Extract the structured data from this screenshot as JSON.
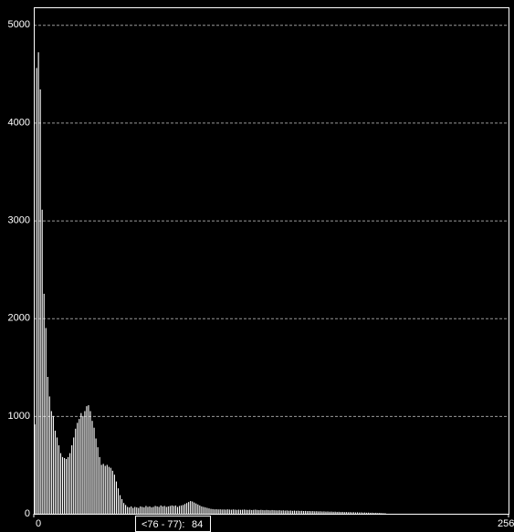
{
  "chart_data": {
    "type": "histogram",
    "color": "#ffffff",
    "grid": true,
    "bins": [
      0,
      1,
      2,
      3,
      4,
      5,
      6,
      7,
      8,
      9,
      10,
      11,
      12,
      13,
      14,
      15,
      16,
      17,
      18,
      19,
      20,
      21,
      22,
      23,
      24,
      25,
      26,
      27,
      28,
      29,
      30,
      31,
      32,
      33,
      34,
      35,
      36,
      37,
      38,
      39,
      40,
      41,
      42,
      43,
      44,
      45,
      46,
      47,
      48,
      49,
      50,
      51,
      52,
      53,
      54,
      55,
      56,
      57,
      58,
      59,
      60,
      61,
      62,
      63,
      64,
      65,
      66,
      67,
      68,
      69,
      70,
      71,
      72,
      73,
      74,
      75,
      76,
      77,
      78,
      79,
      80,
      81,
      82,
      83,
      84,
      85,
      86,
      87,
      88,
      89,
      90,
      91,
      92,
      93,
      94,
      95,
      96,
      97,
      98,
      99,
      100,
      101,
      102,
      103,
      104,
      105,
      106,
      107,
      108,
      109,
      110,
      111,
      112,
      113,
      114,
      115,
      116,
      117,
      118,
      119,
      120,
      121,
      122,
      123,
      124,
      125,
      126,
      127,
      128,
      129,
      130,
      131,
      132,
      133,
      134,
      135,
      136,
      137,
      138,
      139,
      140,
      141,
      142,
      143,
      144,
      145,
      146,
      147,
      148,
      149,
      150,
      151,
      152,
      153,
      154,
      155,
      156,
      157,
      158,
      159,
      160,
      161,
      162,
      163,
      164,
      165,
      166,
      167,
      168,
      169,
      170,
      171,
      172,
      173,
      174,
      175,
      176,
      177,
      178,
      179,
      180,
      181,
      182,
      183,
      184,
      185,
      186,
      187,
      188,
      189,
      190,
      191,
      192,
      193,
      194,
      195,
      196,
      197,
      198,
      199,
      200,
      201,
      202,
      203,
      204,
      205,
      206,
      207,
      208,
      209,
      210,
      211,
      212,
      213,
      214,
      215,
      216,
      217,
      218,
      219,
      220,
      221,
      222,
      223,
      224,
      225,
      226,
      227,
      228,
      229,
      230,
      231,
      232,
      233,
      234,
      235,
      236,
      237,
      238,
      239,
      240,
      241,
      242,
      243,
      244,
      245,
      246,
      247,
      248,
      249,
      250,
      251,
      252,
      253,
      254,
      255,
      256
    ],
    "values": [
      914,
      4560,
      4720,
      4340,
      3110,
      2250,
      1900,
      1400,
      1200,
      1050,
      1000,
      850,
      780,
      700,
      620,
      580,
      570,
      560,
      580,
      620,
      700,
      780,
      870,
      930,
      970,
      1030,
      1000,
      1050,
      1100,
      1110,
      1050,
      950,
      880,
      770,
      680,
      580,
      500,
      510,
      490,
      500,
      480,
      470,
      440,
      400,
      330,
      260,
      190,
      150,
      110,
      90,
      70,
      65,
      75,
      60,
      70,
      65,
      60,
      75,
      70,
      65,
      80,
      70,
      75,
      65,
      70,
      80,
      75,
      70,
      85,
      75,
      80,
      70,
      75,
      80,
      85,
      80,
      84,
      70,
      80,
      85,
      90,
      100,
      110,
      120,
      130,
      125,
      115,
      105,
      95,
      85,
      75,
      70,
      65,
      60,
      55,
      50,
      48,
      45,
      46,
      44,
      45,
      43,
      44,
      42,
      45,
      43,
      41,
      44,
      42,
      40,
      42,
      40,
      41,
      43,
      40,
      39,
      41,
      38,
      40,
      42,
      39,
      37,
      40,
      38,
      36,
      39,
      37,
      35,
      38,
      36,
      35,
      34,
      36,
      33,
      35,
      32,
      34,
      31,
      33,
      30,
      32,
      30,
      31,
      29,
      30,
      28,
      29,
      27,
      28,
      26,
      27,
      25,
      26,
      24,
      25,
      23,
      24,
      22,
      23,
      21,
      22,
      20,
      21,
      19,
      20,
      18,
      19,
      17,
      18,
      16,
      17,
      15,
      16,
      14,
      15,
      13,
      14,
      12,
      13,
      11,
      12,
      10,
      11,
      9,
      10,
      8,
      9,
      7,
      6,
      5,
      0,
      0,
      0,
      0,
      0,
      0,
      0,
      0,
      0,
      0,
      0,
      0,
      0,
      0,
      0,
      0,
      0,
      0,
      0,
      0,
      0,
      0,
      0,
      0,
      0,
      0,
      0,
      0,
      0,
      0,
      0,
      0,
      0,
      0,
      0,
      0,
      0,
      0,
      0,
      0,
      0,
      0,
      0,
      0,
      0,
      0,
      0,
      0,
      0,
      0,
      0,
      0,
      0,
      0,
      0,
      0,
      0,
      0,
      0,
      0,
      0,
      0,
      0,
      0,
      0,
      0
    ],
    "xlim": [
      0,
      256
    ],
    "xticks": [
      0,
      256
    ],
    "ylim": [
      0,
      5180
    ],
    "yticks": [
      0,
      1000,
      2000,
      3000,
      4000,
      5000
    ],
    "status": {
      "range": "<76 - 77):",
      "count": "84"
    }
  }
}
